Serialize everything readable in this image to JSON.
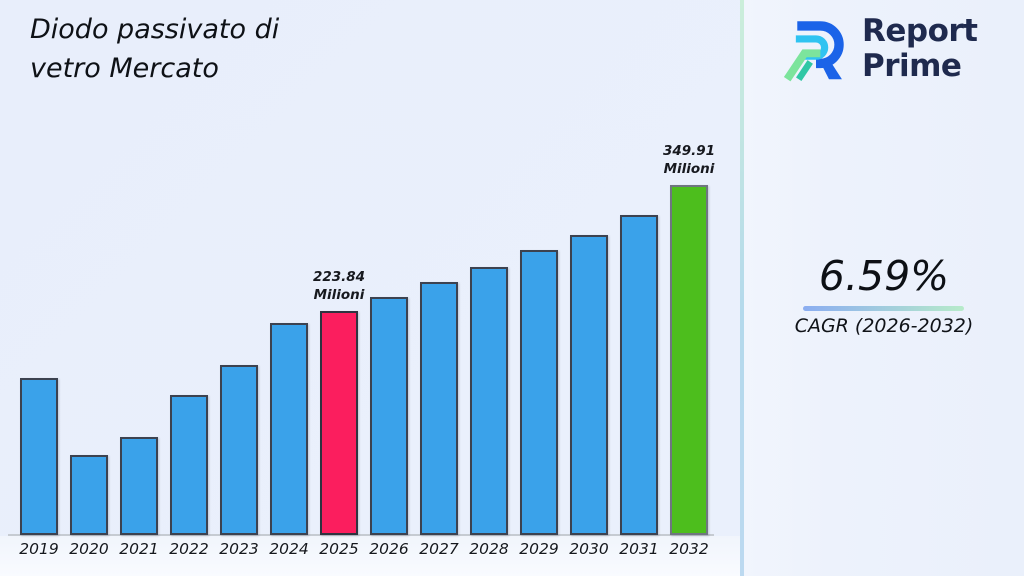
{
  "title": {
    "text": "Diodo passivato di\nvetro Mercato"
  },
  "logo": {
    "line1": "Report",
    "line2": "Prime"
  },
  "stats": {
    "cagr_value": "6.59%",
    "cagr_label": "CAGR (2026-2032)"
  },
  "colors": {
    "background": "#eaf0fb",
    "separator_top": "#cbeeda",
    "separator_bottom": "#bcd9f0",
    "underline_left": "#8badf1",
    "underline_right": "#b7ebca",
    "logo_text": "#1f2a4e"
  },
  "chart_data": {
    "type": "bar",
    "title": "Diodo passivato di vetro Mercato",
    "value_unit": "Milioni",
    "categories": [
      "2019",
      "2020",
      "2021",
      "2022",
      "2023",
      "2024",
      "2025",
      "2026",
      "2027",
      "2028",
      "2029",
      "2030",
      "2031",
      "2032"
    ],
    "values": [
      157,
      80,
      98,
      140,
      170,
      212,
      223.84,
      238,
      253,
      268,
      285,
      300,
      320,
      349.91
    ],
    "ylim": [
      0,
      390
    ],
    "grid": false,
    "legend": false,
    "default_color": "#3aa2ea",
    "default_border": "#3c4250",
    "highlights": [
      {
        "index": 6,
        "category": "2025",
        "color": "#fb1e5e",
        "border_color": "#2e3340",
        "label_lines": [
          "223.84",
          "Milioni"
        ]
      },
      {
        "index": 13,
        "category": "2032",
        "color": "#4dbe1d",
        "border_color": "#6f7680",
        "label_lines": [
          "349.91",
          "Milioni"
        ]
      }
    ]
  }
}
